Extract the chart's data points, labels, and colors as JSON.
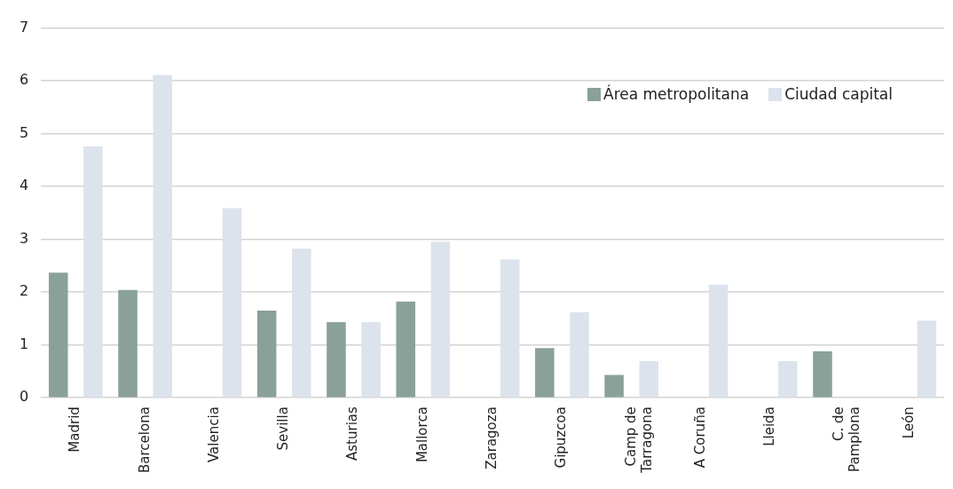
{
  "chart_data": {
    "type": "bar",
    "categories": [
      "Madrid",
      "Barcelona",
      "Valencia",
      "Sevilla",
      "Asturias",
      "Mallorca",
      "Zaragoza",
      "Gipuzcoa",
      "Camp de\nTarragona",
      "A Coruña",
      "Lleida",
      "C. de\nPamplona",
      "León"
    ],
    "series": [
      {
        "name": "Área metropolitana",
        "color": "#8aa199",
        "values": [
          2.37,
          2.04,
          null,
          1.65,
          1.43,
          1.82,
          null,
          0.94,
          0.43,
          null,
          null,
          0.88,
          null
        ]
      },
      {
        "name": "Ciudad capital",
        "color": "#dce3ec",
        "values": [
          4.76,
          6.11,
          3.59,
          2.82,
          1.43,
          2.95,
          2.62,
          1.62,
          0.69,
          2.14,
          0.69,
          null,
          1.46
        ]
      }
    ],
    "ylim": [
      0,
      7
    ],
    "yticks": [
      0,
      1,
      2,
      3,
      4,
      5,
      6,
      7
    ],
    "grid": "y",
    "legend": "top right"
  }
}
